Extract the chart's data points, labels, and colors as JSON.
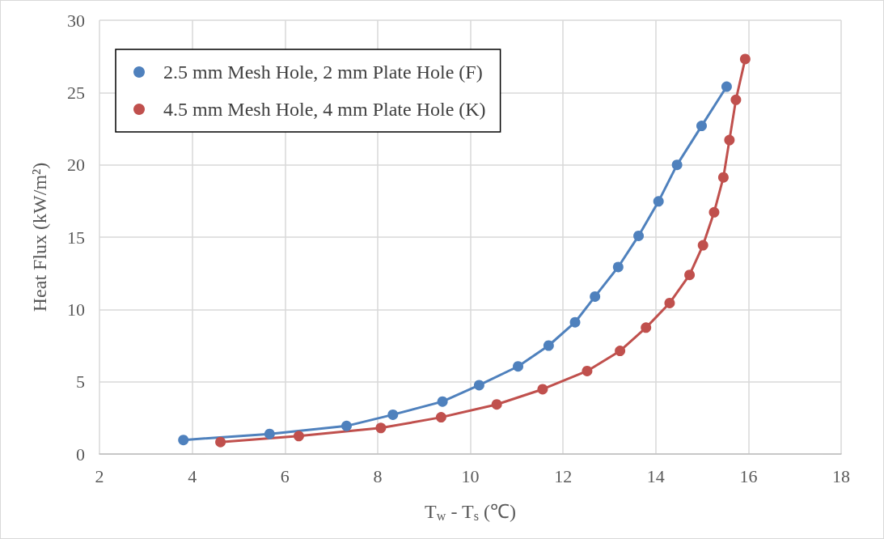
{
  "chart_data": {
    "type": "line",
    "xlabel": "T$_{w}$ - T$_{s}$ (℃)",
    "ylabel": "Heat Flux (kW/m²)",
    "xlim": [
      2,
      18
    ],
    "xticks": [
      2,
      4,
      6,
      8,
      10,
      12,
      14,
      16,
      18
    ],
    "ylim": [
      0,
      30
    ],
    "yticks": [
      0,
      5,
      10,
      15,
      20,
      25,
      30
    ],
    "grid": true,
    "legend": "top left",
    "marker": "circle",
    "line_style": "solid",
    "series": [
      {
        "name": "2.5 mm Mesh Hole, 2 mm Plate Hole (F)",
        "color": "#4f81bd",
        "x": [
          3.81,
          5.67,
          7.33,
          8.33,
          9.4,
          10.19,
          11.03,
          11.69,
          12.26,
          12.69,
          13.19,
          13.63,
          14.06,
          14.46,
          14.99,
          15.53
        ],
        "values": [
          0.97,
          1.39,
          1.94,
          2.72,
          3.63,
          4.76,
          6.06,
          7.5,
          9.11,
          10.89,
          12.93,
          15.09,
          17.47,
          20.0,
          22.69,
          25.41
        ]
      },
      {
        "name": "4.5 mm Mesh Hole, 4 mm Plate Hole (K)",
        "color": "#c0504d",
        "x": [
          4.61,
          6.3,
          8.07,
          9.37,
          10.57,
          11.56,
          12.52,
          13.23,
          13.79,
          14.3,
          14.73,
          15.02,
          15.26,
          15.46,
          15.59,
          15.73,
          15.93
        ],
        "values": [
          0.83,
          1.24,
          1.8,
          2.54,
          3.43,
          4.48,
          5.74,
          7.13,
          8.74,
          10.44,
          12.39,
          14.44,
          16.72,
          19.13,
          21.71,
          24.5,
          27.32
        ]
      }
    ]
  }
}
